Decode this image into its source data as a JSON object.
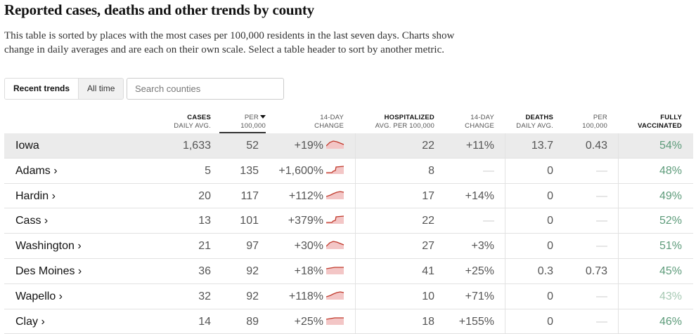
{
  "title": "Reported cases, deaths and other trends by county",
  "description": "This table is sorted by places with the most cases per 100,000 residents in the last seven days. Charts show change in daily averages and are each on their own scale. Select a table header to sort by another metric.",
  "tabs": {
    "recent": "Recent trends",
    "alltime": "All time"
  },
  "search": {
    "placeholder": "Search counties"
  },
  "headers": {
    "cases_top": "Cases",
    "cases_sub": "Daily avg.",
    "per_top": "Per",
    "per_sub": "100,000",
    "change_top": "14-day",
    "change_sub": "change",
    "hosp_top": "Hospitalized",
    "hosp_sub": "Avg. per 100,000",
    "hchange_top": "14-day",
    "hchange_sub": "change",
    "deaths_top": "Deaths",
    "deaths_sub": "Daily avg.",
    "dper_top": "Per",
    "dper_sub": "100,000",
    "vax_top": "Fully",
    "vax_sub": "vaccinated"
  },
  "colors": {
    "spark_line": "#c0392b",
    "spark_fill": "#f3c6c6",
    "vax": "#5d9b7a",
    "vax_light": "#a6c9b3"
  },
  "rows": [
    {
      "name": "Iowa",
      "cases": "1,633",
      "per": "52",
      "change": "+19%",
      "spark": "peak",
      "hosp": "22",
      "hchange": "+11%",
      "deaths": "13.7",
      "dper": "0.43",
      "vax": "54%"
    },
    {
      "name": "Adams ›",
      "cases": "5",
      "per": "135",
      "change": "+1,600%",
      "spark": "step",
      "hosp": "8",
      "hchange": "—",
      "deaths": "0",
      "dper": "—",
      "vax": "48%"
    },
    {
      "name": "Hardin ›",
      "cases": "20",
      "per": "117",
      "change": "+112%",
      "spark": "rise",
      "hosp": "17",
      "hchange": "+14%",
      "deaths": "0",
      "dper": "—",
      "vax": "49%"
    },
    {
      "name": "Cass ›",
      "cases": "13",
      "per": "101",
      "change": "+379%",
      "spark": "step",
      "hosp": "22",
      "hchange": "—",
      "deaths": "0",
      "dper": "—",
      "vax": "52%"
    },
    {
      "name": "Washington ›",
      "cases": "21",
      "per": "97",
      "change": "+30%",
      "spark": "peak",
      "hosp": "27",
      "hchange": "+3%",
      "deaths": "0",
      "dper": "—",
      "vax": "51%"
    },
    {
      "name": "Des Moines ›",
      "cases": "36",
      "per": "92",
      "change": "+18%",
      "spark": "flat",
      "hosp": "41",
      "hchange": "+25%",
      "deaths": "0.3",
      "dper": "0.73",
      "vax": "45%"
    },
    {
      "name": "Wapello ›",
      "cases": "32",
      "per": "92",
      "change": "+118%",
      "spark": "rise",
      "hosp": "10",
      "hchange": "+71%",
      "deaths": "0",
      "dper": "—",
      "vax": "43%"
    },
    {
      "name": "Clay ›",
      "cases": "14",
      "per": "89",
      "change": "+25%",
      "spark": "flat",
      "hosp": "18",
      "hchange": "+155%",
      "deaths": "0",
      "dper": "—",
      "vax": "46%"
    }
  ]
}
